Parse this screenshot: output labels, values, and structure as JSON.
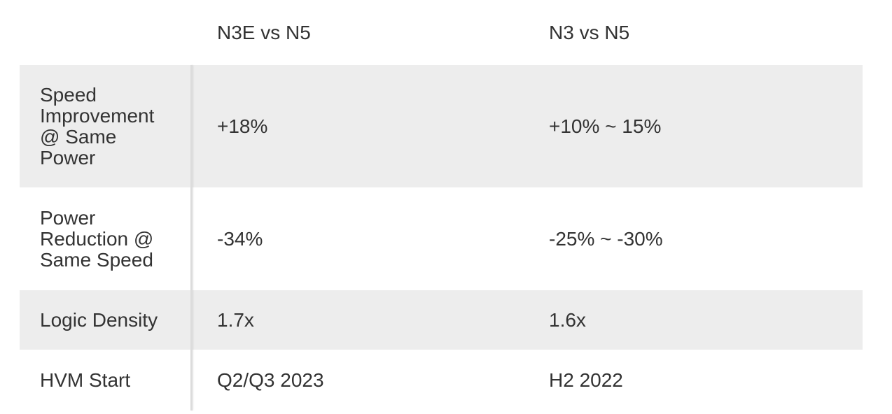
{
  "table": {
    "columns": [
      "N3E vs N5",
      "N3 vs N5"
    ],
    "rows": [
      [
        "Speed Improvement @ Same Power",
        "+18%",
        "+10% ~ 15%"
      ],
      [
        "Power Reduction @ Same Speed",
        "-34%",
        "-25% ~ -30%"
      ],
      [
        "Logic Density",
        "1.7x",
        "1.6x"
      ],
      [
        "HVM Start",
        "Q2/Q3 2023",
        "H2 2022"
      ]
    ]
  }
}
